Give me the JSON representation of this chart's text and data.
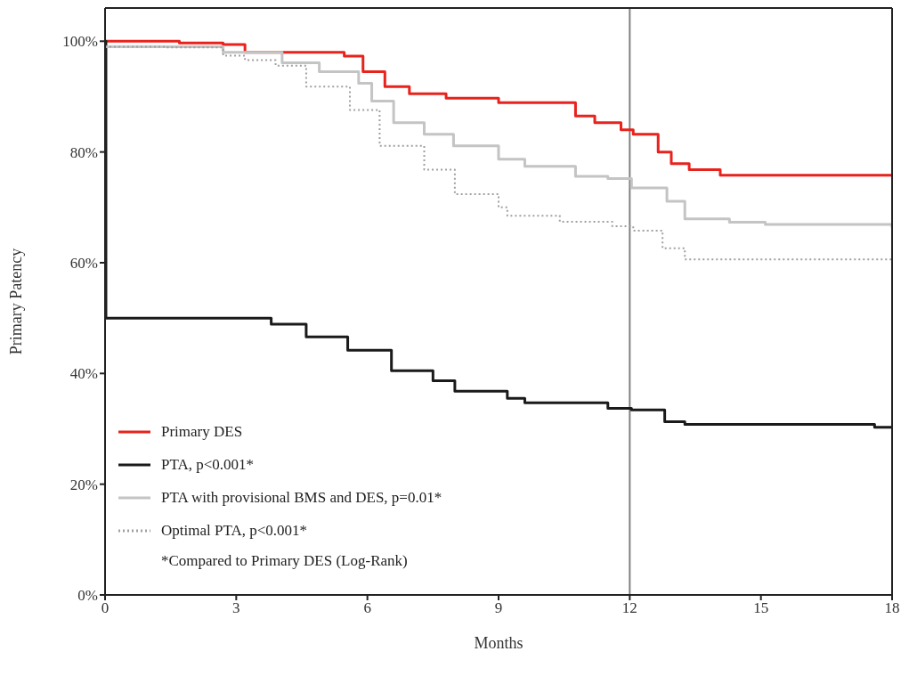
{
  "chart_data": {
    "type": "step",
    "xlabel": "Months",
    "ylabel": "Primary Patency",
    "xlim": [
      0,
      18
    ],
    "xticks": [
      0,
      3,
      6,
      9,
      12,
      15,
      18
    ],
    "ylim": [
      0,
      106
    ],
    "yticks": [
      {
        "value": 0,
        "label": "0%"
      },
      {
        "value": 20,
        "label": "20%"
      },
      {
        "value": 40,
        "label": "40%"
      },
      {
        "value": 60,
        "label": "60%"
      },
      {
        "value": 80,
        "label": "80%"
      },
      {
        "value": 100,
        "label": "100%"
      }
    ],
    "grid": false,
    "legend": "bottom left",
    "marker": "none",
    "ref_lines": [
      {
        "axis": "x",
        "value": 12,
        "color": "#808080"
      }
    ],
    "annotations": [
      "*Compared to Primary DES (Log-Rank)"
    ],
    "series": [
      {
        "name": "Primary DES",
        "color": "#e8221c",
        "line_style": "solid",
        "x": [
          0,
          1.7,
          2.7,
          3.2,
          5.47,
          5.9,
          6.4,
          6.96,
          7.8,
          9,
          10.76,
          11.2,
          11.8,
          12.08,
          12.65,
          12.95,
          13.36,
          14.07,
          18
        ],
        "values": [
          100,
          99.7,
          99.4,
          98,
          97.3,
          94.5,
          91.8,
          90.5,
          89.7,
          88.9,
          86.5,
          85.3,
          84,
          83.2,
          80,
          77.9,
          76.8,
          75.8,
          75.8
        ]
      },
      {
        "name": "PTA, p<0.001*",
        "color": "#1a1a1a",
        "line_style": "solid",
        "x": [
          0,
          0.02,
          2.34,
          3.8,
          4.6,
          5.55,
          6.55,
          7.5,
          8,
          9.2,
          9.6,
          11.5,
          12.04,
          12.8,
          13.26,
          17.6,
          18
        ],
        "values": [
          100,
          50,
          50,
          48.9,
          46.6,
          44.2,
          40.5,
          38.7,
          36.8,
          35.5,
          34.7,
          33.7,
          33.4,
          31.3,
          30.8,
          30.3,
          30.3
        ]
      },
      {
        "name": "PTA with provisional BMS and DES, p=0.01*",
        "color": "#c4c4c4",
        "line_style": "solid",
        "x": [
          0,
          2.7,
          4.05,
          4.9,
          5.8,
          6.1,
          6.6,
          7.3,
          7.97,
          9,
          9.6,
          10.76,
          11.5,
          12.04,
          12.85,
          13.26,
          14.28,
          15.1,
          17.4,
          18
        ],
        "values": [
          99,
          98,
          96.1,
          94.5,
          92.4,
          89.2,
          85.3,
          83.2,
          81.1,
          78.7,
          77.4,
          75.6,
          75.2,
          73.5,
          71.1,
          67.9,
          67.3,
          66.9,
          66.9,
          66.3
        ]
      },
      {
        "name": "Optimal PTA, p<0.001*",
        "color": "#a0a0a0",
        "line_style": "dotted",
        "x": [
          0,
          1.4,
          2.7,
          3.2,
          3.9,
          4.6,
          5.6,
          6.28,
          7.3,
          8,
          9,
          9.2,
          10.4,
          11.6,
          12.08,
          12.75,
          13.26,
          17.4,
          18
        ],
        "values": [
          99,
          98.9,
          97.4,
          96.6,
          95.6,
          91.8,
          87.6,
          81.1,
          76.8,
          72.4,
          70,
          68.5,
          67.4,
          66.6,
          65.8,
          62.6,
          60.6,
          60.6,
          59.7
        ]
      }
    ]
  }
}
